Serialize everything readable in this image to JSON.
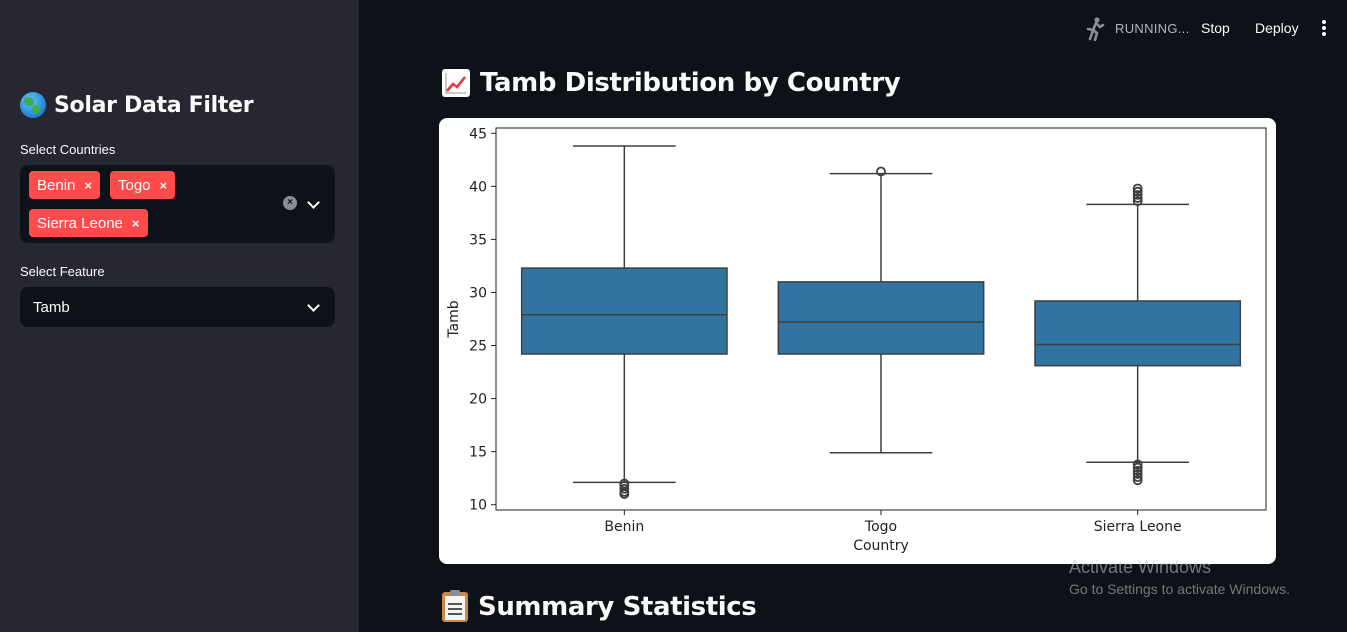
{
  "sidebar": {
    "title": "Solar Data Filter",
    "countries_label": "Select Countries",
    "selected_countries": [
      "Benin",
      "Togo",
      "Sierra Leone"
    ],
    "feature_label": "Select Feature",
    "feature_value": "Tamb"
  },
  "toolbar": {
    "status": "RUNNING...",
    "stop_label": "Stop",
    "deploy_label": "Deploy"
  },
  "main": {
    "chart_heading": "Tamb Distribution by Country",
    "summary_heading": "Summary Statistics"
  },
  "watermark": {
    "line1": "Activate Windows",
    "line2": "Go to Settings to activate Windows."
  },
  "colors": {
    "box_fill": "#3274a1",
    "tag_bg": "#ff4b4b",
    "sidebar_bg": "#262730",
    "app_bg": "#0e1117"
  },
  "chart_data": {
    "type": "box",
    "title": "",
    "xlabel": "Country",
    "ylabel": "Tamb",
    "categories": [
      "Benin",
      "Togo",
      "Sierra Leone"
    ],
    "ylim": [
      9.5,
      45.5
    ],
    "yticks": [
      10,
      15,
      20,
      25,
      30,
      35,
      40,
      45
    ],
    "boxes": [
      {
        "category": "Benin",
        "whisker_low": 12.1,
        "q1": 24.2,
        "median": 27.9,
        "q3": 32.3,
        "whisker_high": 43.8,
        "outliers_low": [
          11.0,
          11.2,
          11.5,
          11.8,
          12.0
        ],
        "outliers_high": []
      },
      {
        "category": "Togo",
        "whisker_low": 14.9,
        "q1": 24.2,
        "median": 27.2,
        "q3": 31.0,
        "whisker_high": 41.2,
        "outliers_low": [],
        "outliers_high": [
          41.4
        ]
      },
      {
        "category": "Sierra Leone",
        "whisker_low": 14.0,
        "q1": 23.1,
        "median": 25.1,
        "q3": 29.2,
        "whisker_high": 38.3,
        "outliers_low": [
          12.3,
          12.6,
          12.9,
          13.2,
          13.5,
          13.8
        ],
        "outliers_high": [
          38.6,
          38.9,
          39.2,
          39.5,
          39.8
        ]
      }
    ]
  }
}
